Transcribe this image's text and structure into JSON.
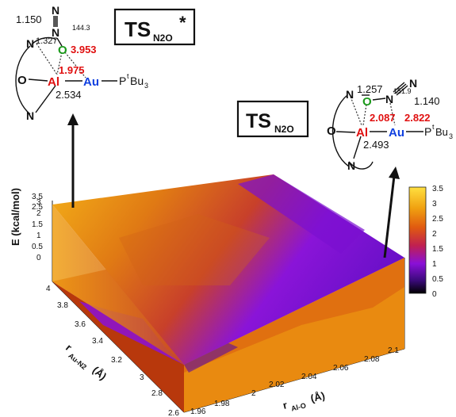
{
  "chart_data": {
    "type": "surface3d",
    "zlabel": "E (kcal/mol)",
    "ylabel": "r",
    "ylabel_sub": "Au-N2",
    "ylabel_unit": "(Å)",
    "xlabel": "r",
    "xlabel_sub": "Al-O",
    "xlabel_unit": "(Å)",
    "x_ticks": [
      "1.96",
      "1.98",
      "2",
      "2.02",
      "2.04",
      "2.06",
      "2.08",
      "2.1"
    ],
    "xlim": [
      1.96,
      2.1
    ],
    "y_ticks": [
      "2.6",
      "2.8",
      "3",
      "3.2",
      "3.4",
      "3.6",
      "3.8",
      "4"
    ],
    "ylim": [
      2.6,
      4.0
    ],
    "z_ticks": [
      "0",
      "0.5",
      "1",
      "1.5",
      "2",
      "2.5",
      "3",
      "3.5"
    ],
    "zlim": [
      0,
      3.5
    ],
    "colorbar_ticks": [
      "0",
      "0.5",
      "1",
      "1.5",
      "2",
      "2.5",
      "3",
      "3.5"
    ],
    "colorbar_range": [
      0,
      3.5
    ],
    "colormap": [
      "#000000",
      "#3a0a7a",
      "#8a10d8",
      "#c02050",
      "#e05a10",
      "#f0a010",
      "#ffe040"
    ],
    "corners": [
      {
        "r_alo": 1.96,
        "r_aun2": 2.6,
        "energy": 0.3
      },
      {
        "r_alo": 2.1,
        "r_aun2": 2.6,
        "energy": 0.2
      },
      {
        "r_alo": 2.1,
        "r_aun2": 4.0,
        "energy": 0.0
      },
      {
        "r_alo": 1.96,
        "r_aun2": 4.0,
        "energy": 3.3
      }
    ]
  },
  "ts_star": {
    "title": "TS",
    "sub": "N2O",
    "star": "*",
    "dist_nn": "1.150",
    "angle": "144.3",
    "dist_n_o": "1.327",
    "dist_au_o": "3.953",
    "dist_al_o": "1.975",
    "dist_al_au": "2.534",
    "atom_al": "Al",
    "atom_au": "Au",
    "atom_o": "O",
    "atom_n": "N",
    "ligand": "P",
    "ligand_sup": "t",
    "ligand_tail": "Bu",
    "ligand_sub": "3"
  },
  "ts": {
    "title": "TS",
    "sub": "N2O",
    "dist_n_o": "1.257",
    "angle": "151.9",
    "dist_nn": "1.140",
    "dist_al_o": "2.087",
    "dist_au_n": "2.822",
    "dist_al_au": "2.493",
    "atom_al": "Al",
    "atom_au": "Au",
    "atom_o": "O",
    "atom_n": "N",
    "ligand": "P",
    "ligand_sup": "t",
    "ligand_tail": "Bu",
    "ligand_sub": "3"
  }
}
